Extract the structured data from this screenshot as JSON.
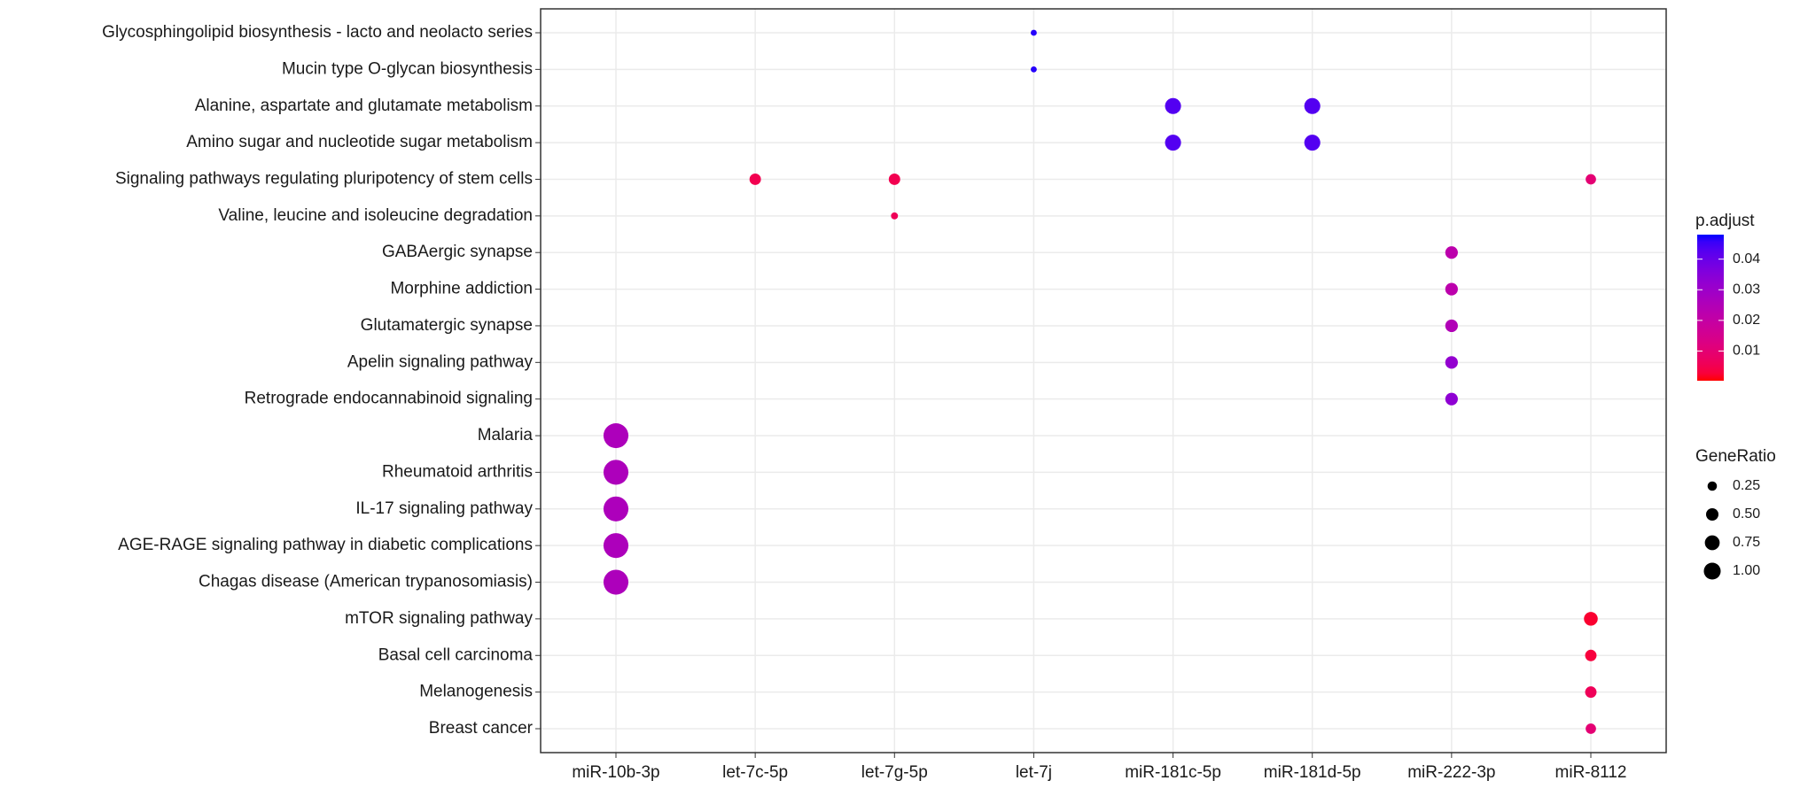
{
  "chart_data": {
    "type": "dot",
    "x_categories": [
      "miR-10b-3p",
      "let-7c-5p",
      "let-7g-5p",
      "let-7j",
      "miR-181c-5p",
      "miR-181d-5p",
      "miR-222-3p",
      "miR-8112"
    ],
    "y_categories": [
      "Glycosphingolipid biosynthesis - lacto and neolacto series",
      "Mucin type O-glycan biosynthesis",
      "Alanine, aspartate and glutamate metabolism",
      "Amino sugar and nucleotide sugar metabolism",
      "Signaling pathways regulating pluripotency of stem cells",
      "Valine, leucine and isoleucine degradation",
      "GABAergic synapse",
      "Morphine addiction",
      "Glutamatergic synapse",
      "Apelin signaling pathway",
      "Retrograde endocannabinoid signaling",
      "Malaria",
      "Rheumatoid arthritis",
      "IL-17 signaling pathway",
      "AGE-RAGE signaling pathway in diabetic complications",
      "Chagas disease (American trypanosomiasis)",
      "mTOR signaling pathway",
      "Basal cell carcinoma",
      "Melanogenesis",
      "Breast cancer"
    ],
    "points": [
      {
        "x": "let-7j",
        "y": "Glycosphingolipid biosynthesis - lacto and neolacto series",
        "gene_ratio": 0.01,
        "p_adjust": 0.047
      },
      {
        "x": "let-7j",
        "y": "Mucin type O-glycan biosynthesis",
        "gene_ratio": 0.01,
        "p_adjust": 0.047
      },
      {
        "x": "miR-181c-5p",
        "y": "Alanine, aspartate and glutamate metabolism",
        "gene_ratio": 0.57,
        "p_adjust": 0.043
      },
      {
        "x": "miR-181d-5p",
        "y": "Alanine, aspartate and glutamate metabolism",
        "gene_ratio": 0.57,
        "p_adjust": 0.043
      },
      {
        "x": "miR-181c-5p",
        "y": "Amino sugar and nucleotide sugar metabolism",
        "gene_ratio": 0.57,
        "p_adjust": 0.043
      },
      {
        "x": "miR-181d-5p",
        "y": "Amino sugar and nucleotide sugar metabolism",
        "gene_ratio": 0.57,
        "p_adjust": 0.043
      },
      {
        "x": "let-7c-5p",
        "y": "Signaling pathways regulating pluripotency of stem cells",
        "gene_ratio": 0.25,
        "p_adjust": 0.005
      },
      {
        "x": "let-7g-5p",
        "y": "Signaling pathways regulating pluripotency of stem cells",
        "gene_ratio": 0.25,
        "p_adjust": 0.005
      },
      {
        "x": "miR-8112",
        "y": "Signaling pathways regulating pluripotency of stem cells",
        "gene_ratio": 0.19,
        "p_adjust": 0.01
      },
      {
        "x": "let-7g-5p",
        "y": "Valine, leucine and isoleucine degradation",
        "gene_ratio": 0.04,
        "p_adjust": 0.006
      },
      {
        "x": "miR-222-3p",
        "y": "GABAergic synapse",
        "gene_ratio": 0.32,
        "p_adjust": 0.022
      },
      {
        "x": "miR-222-3p",
        "y": "Morphine addiction",
        "gene_ratio": 0.32,
        "p_adjust": 0.022
      },
      {
        "x": "miR-222-3p",
        "y": "Glutamatergic synapse",
        "gene_ratio": 0.32,
        "p_adjust": 0.025
      },
      {
        "x": "miR-222-3p",
        "y": "Apelin signaling pathway",
        "gene_ratio": 0.32,
        "p_adjust": 0.032
      },
      {
        "x": "miR-222-3p",
        "y": "Retrograde endocannabinoid signaling",
        "gene_ratio": 0.32,
        "p_adjust": 0.033
      },
      {
        "x": "miR-10b-3p",
        "y": "Malaria",
        "gene_ratio": 1.5,
        "p_adjust": 0.026
      },
      {
        "x": "miR-10b-3p",
        "y": "Rheumatoid arthritis",
        "gene_ratio": 1.5,
        "p_adjust": 0.026
      },
      {
        "x": "miR-10b-3p",
        "y": "IL-17 signaling pathway",
        "gene_ratio": 1.5,
        "p_adjust": 0.026
      },
      {
        "x": "miR-10b-3p",
        "y": "AGE-RAGE signaling pathway in diabetic complications",
        "gene_ratio": 1.5,
        "p_adjust": 0.026
      },
      {
        "x": "miR-10b-3p",
        "y": "Chagas disease (American trypanosomiasis)",
        "gene_ratio": 1.5,
        "p_adjust": 0.026
      },
      {
        "x": "miR-8112",
        "y": "mTOR signaling pathway",
        "gene_ratio": 0.4,
        "p_adjust": 0.002
      },
      {
        "x": "miR-8112",
        "y": "Basal cell carcinoma",
        "gene_ratio": 0.25,
        "p_adjust": 0.003
      },
      {
        "x": "miR-8112",
        "y": "Melanogenesis",
        "gene_ratio": 0.25,
        "p_adjust": 0.006
      },
      {
        "x": "miR-8112",
        "y": "Breast cancer",
        "gene_ratio": 0.19,
        "p_adjust": 0.01
      }
    ],
    "color_legend": {
      "title": "p.adjust",
      "low": "#FF0000",
      "high": "#0000FF",
      "clim": [
        0.0003,
        0.048
      ],
      "ticks": [
        0.01,
        0.02,
        0.03,
        0.04
      ]
    },
    "size_legend": {
      "title": "GeneRatio",
      "ticks": [
        0.25,
        {
          "value": 0.5,
          "label": "0.50"
        },
        0.75,
        {
          "value": 1,
          "label": "1.00"
        }
      ]
    },
    "grid": true
  }
}
